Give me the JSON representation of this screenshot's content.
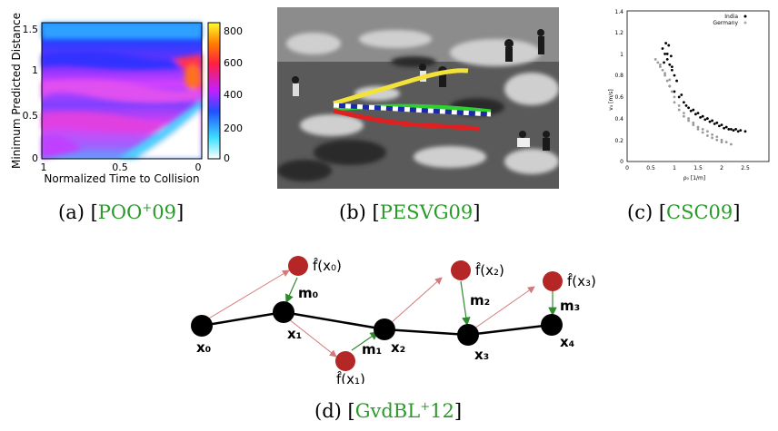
{
  "colors": {
    "cite": "#2a9a2a",
    "red_node": "#b52626",
    "edge_red": "#d27a7a",
    "edge_green": "#2f8a2f"
  },
  "panel_a": {
    "ylabel": "Minimum Predicted Distance",
    "xlabel": "Normalized Time to Collision",
    "yticks": [
      "0",
      "0.5",
      "1",
      "1.5"
    ],
    "xticks": [
      "1",
      "0.5",
      "0"
    ],
    "colorbar_ticks": [
      "0",
      "200",
      "400",
      "600",
      "800"
    ],
    "caption": {
      "label": "(a)",
      "cite_main": "POO",
      "cite_sup": "+",
      "cite_tail": "09"
    }
  },
  "panel_b": {
    "caption": {
      "label": "(b)",
      "cite": "PESVG09"
    }
  },
  "panel_c": {
    "ylabel": "v₀ [m/s]",
    "xlabel": "ρ₀ [1/m]",
    "yticks": [
      "0",
      "0.2",
      "0.4",
      "0.6",
      "0.8",
      "1",
      "1.2",
      "1.4"
    ],
    "xticks": [
      "0",
      "0.5",
      "1",
      "1.5",
      "2",
      "2.5"
    ],
    "legend": [
      "India",
      "Germany"
    ],
    "caption": {
      "label": "(c)",
      "cite": "CSC09"
    }
  },
  "panel_d": {
    "nodes": [
      "x₀",
      "x₁",
      "x₂",
      "x₃",
      "x₄"
    ],
    "predictions": [
      "f̂(x₀)",
      "f̂(x₁)",
      "f̂(x₂)",
      "f̂(x₃)"
    ],
    "motions": [
      "m₀",
      "m₁",
      "m₂",
      "m₃"
    ],
    "caption": {
      "label": "(d)",
      "cite_main": "GvdBL",
      "cite_sup": "+",
      "cite_tail": "12"
    }
  },
  "chart_data": {
    "type": "scatter",
    "xlabel": "ρ₀ [1/m]",
    "ylabel": "v₀ [m/s]",
    "xlim": [
      0,
      3
    ],
    "ylim": [
      0,
      1.4
    ],
    "series": [
      {
        "name": "India",
        "x": [
          0.75,
          0.8,
          0.85,
          0.9,
          0.95,
          1.0,
          0.82,
          0.88,
          0.93,
          0.78,
          1.05,
          1.1,
          1.2,
          1.3,
          1.4,
          1.5,
          1.6,
          1.7,
          1.8,
          1.9,
          2.0,
          2.1,
          2.2,
          2.3,
          2.4,
          2.5,
          1.15,
          1.25,
          1.35,
          1.45,
          1.55,
          1.65,
          1.75,
          1.85,
          1.95,
          2.05,
          2.15,
          2.25,
          2.35,
          0.9,
          1.0,
          0.85,
          0.95
        ],
        "y": [
          1.05,
          1.0,
          0.95,
          0.9,
          0.85,
          0.8,
          1.1,
          1.08,
          0.98,
          0.92,
          0.75,
          0.6,
          0.55,
          0.5,
          0.48,
          0.45,
          0.42,
          0.4,
          0.38,
          0.36,
          0.34,
          0.32,
          0.3,
          0.3,
          0.29,
          0.28,
          0.62,
          0.52,
          0.47,
          0.44,
          0.41,
          0.39,
          0.37,
          0.35,
          0.33,
          0.31,
          0.3,
          0.29,
          0.28,
          0.7,
          0.65,
          1.0,
          0.88
        ]
      },
      {
        "name": "Germany",
        "x": [
          0.6,
          0.65,
          0.7,
          0.75,
          0.8,
          0.85,
          0.9,
          0.95,
          1.0,
          1.1,
          1.2,
          1.3,
          1.4,
          1.5,
          1.6,
          1.7,
          1.8,
          1.9,
          2.0,
          2.1,
          2.2,
          0.7,
          0.8,
          0.9,
          1.0,
          1.1,
          1.2,
          1.3,
          1.4,
          1.5,
          1.6,
          1.7,
          1.8,
          1.9,
          2.0
        ],
        "y": [
          0.95,
          0.92,
          0.88,
          0.85,
          0.8,
          0.75,
          0.7,
          0.65,
          0.6,
          0.52,
          0.45,
          0.4,
          0.36,
          0.32,
          0.3,
          0.28,
          0.25,
          0.23,
          0.2,
          0.18,
          0.16,
          0.9,
          0.82,
          0.76,
          0.55,
          0.48,
          0.42,
          0.38,
          0.34,
          0.3,
          0.27,
          0.24,
          0.22,
          0.2,
          0.18
        ]
      }
    ]
  }
}
